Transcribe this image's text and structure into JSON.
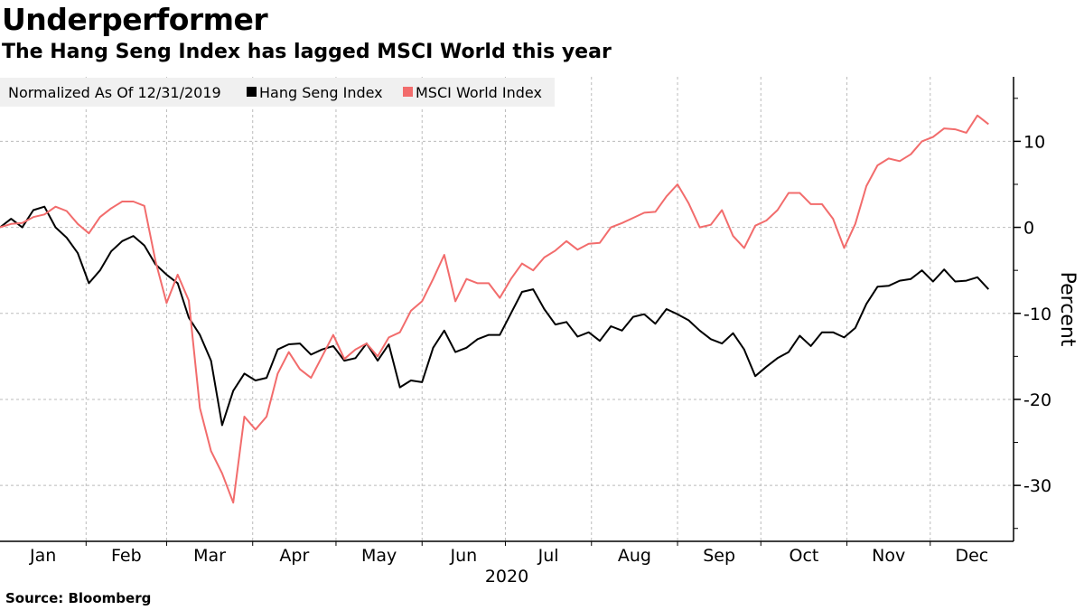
{
  "header": {
    "title": "Underperformer",
    "subtitle": "The Hang Seng Index has lagged MSCI World this year"
  },
  "footer": {
    "source": "Source: Bloomberg"
  },
  "chart_data": {
    "type": "line",
    "title": "Underperformer",
    "subtitle": "The Hang Seng Index has lagged MSCI World this year",
    "legend_note": "Normalized As Of 12/31/2019",
    "legend_position": "top-left",
    "ylabel": "Percent",
    "xlabel": "2020",
    "y_axis_side": "right",
    "ylim": [
      -36.5,
      17.5
    ],
    "yticks": [
      -30,
      -20,
      -10,
      0,
      10
    ],
    "ytick_labels": [
      "-30",
      "-20",
      "-10",
      "0",
      "10"
    ],
    "xlim": [
      "2020-01-01",
      "2020-12-31"
    ],
    "month_labels": [
      "Jan",
      "Feb",
      "Mar",
      "Apr",
      "May",
      "Jun",
      "Jul",
      "Aug",
      "Sep",
      "Oct",
      "Nov",
      "Dec"
    ],
    "grid": true,
    "x": [
      "2020-01-01",
      "2020-01-05",
      "2020-01-09",
      "2020-01-13",
      "2020-01-17",
      "2020-01-21",
      "2020-01-25",
      "2020-01-29",
      "2020-02-02",
      "2020-02-06",
      "2020-02-10",
      "2020-02-14",
      "2020-02-18",
      "2020-02-22",
      "2020-02-26",
      "2020-03-01",
      "2020-03-05",
      "2020-03-09",
      "2020-03-13",
      "2020-03-17",
      "2020-03-21",
      "2020-03-25",
      "2020-03-29",
      "2020-04-02",
      "2020-04-06",
      "2020-04-10",
      "2020-04-14",
      "2020-04-18",
      "2020-04-22",
      "2020-04-26",
      "2020-04-30",
      "2020-05-04",
      "2020-05-08",
      "2020-05-12",
      "2020-05-16",
      "2020-05-20",
      "2020-05-24",
      "2020-05-28",
      "2020-06-01",
      "2020-06-05",
      "2020-06-09",
      "2020-06-13",
      "2020-06-17",
      "2020-06-21",
      "2020-06-25",
      "2020-06-29",
      "2020-07-03",
      "2020-07-07",
      "2020-07-11",
      "2020-07-15",
      "2020-07-19",
      "2020-07-23",
      "2020-07-27",
      "2020-07-31",
      "2020-08-04",
      "2020-08-08",
      "2020-08-12",
      "2020-08-16",
      "2020-08-20",
      "2020-08-24",
      "2020-08-28",
      "2020-09-01",
      "2020-09-05",
      "2020-09-09",
      "2020-09-13",
      "2020-09-17",
      "2020-09-21",
      "2020-09-25",
      "2020-09-29",
      "2020-10-03",
      "2020-10-07",
      "2020-10-11",
      "2020-10-15",
      "2020-10-19",
      "2020-10-23",
      "2020-10-27",
      "2020-10-31",
      "2020-11-04",
      "2020-11-08",
      "2020-11-12",
      "2020-11-16",
      "2020-11-20",
      "2020-11-24",
      "2020-11-28",
      "2020-12-02",
      "2020-12-06",
      "2020-12-10",
      "2020-12-14",
      "2020-12-18",
      "2020-12-22"
    ],
    "series": [
      {
        "name": "Hang Seng Index",
        "color": "#000000",
        "values": [
          0,
          1.0,
          0,
          2.0,
          2.4,
          0,
          -1.2,
          -3.0,
          -6.5,
          -5.0,
          -2.8,
          -1.6,
          -1.0,
          -2.1,
          -4.3,
          -5.5,
          -6.5,
          -10.5,
          -12.5,
          -15.5,
          -23,
          -19,
          -17,
          -17.8,
          -17.5,
          -14.2,
          -13.6,
          -13.5,
          -14.8,
          -14.2,
          -13.8,
          -15.5,
          -15.2,
          -13.5,
          -15.5,
          -13.6,
          -18.6,
          -17.8,
          -18,
          -14,
          -12,
          -14.5,
          -14,
          -13,
          -12.5,
          -12.5,
          -10,
          -7.5,
          -7.2,
          -9.5,
          -11.3,
          -11,
          -12.7,
          -12.2,
          -13.2,
          -11.5,
          -12,
          -10.4,
          -10.1,
          -11.2,
          -9.5,
          -10.1,
          -10.8,
          -12,
          -13,
          -13.5,
          -12.3,
          -14.2,
          -17.3,
          -16.2,
          -15.2,
          -14.5,
          -12.6,
          -13.8,
          -12.2,
          -12.2,
          -12.8,
          -11.7,
          -8.9,
          -6.9,
          -6.8,
          -6.2,
          -6,
          -5,
          -6.3,
          -4.9,
          -6.3,
          -6.2,
          -5.8,
          -7.2
        ]
      },
      {
        "name": "MSCI World Index",
        "color": "#f26c6c",
        "values": [
          0,
          0.4,
          0.5,
          1.2,
          1.5,
          2.4,
          1.9,
          0.4,
          -0.7,
          1.2,
          2.2,
          3.0,
          3.0,
          2.5,
          -3.9,
          -8.8,
          -5.5,
          -8.5,
          -21,
          -26,
          -28.6,
          -32,
          -22,
          -23.5,
          -22,
          -17,
          -14.5,
          -16.5,
          -17.5,
          -15,
          -12.5,
          -15.3,
          -14.2,
          -13.5,
          -15,
          -12.8,
          -12.2,
          -9.7,
          -8.6,
          -6,
          -3.2,
          -8.6,
          -6,
          -6.5,
          -6.5,
          -8.2,
          -6,
          -4.2,
          -5,
          -3.5,
          -2.7,
          -1.6,
          -2.6,
          -1.9,
          -1.8,
          0,
          0.5,
          1.1,
          1.7,
          1.8,
          3.6,
          5.0,
          2.8,
          0,
          0.3,
          2,
          -1,
          -2.4,
          0.2,
          0.8,
          2,
          4,
          4,
          2.7,
          2.7,
          1,
          -2.4,
          0.4,
          4.8,
          7.2,
          8,
          7.7,
          8.5,
          10,
          10.5,
          11.5,
          11.4,
          11,
          13,
          12
        ]
      }
    ]
  }
}
